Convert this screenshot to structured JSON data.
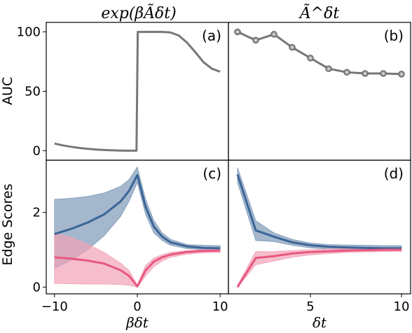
{
  "figure": {
    "col_titles": [
      "exp(βÃδt)",
      "Ã^δt"
    ],
    "ylabel_top": "AUC",
    "ylabel_bottom": "Edge Scores",
    "xlabel_left": "βδt",
    "xlabel_right": "δt",
    "colors": {
      "gray": "#777777",
      "blue": "#3b6596",
      "blue_band": "#7e98b8",
      "pink": "#e8577f",
      "pink_band": "#f2a2b7"
    }
  },
  "chart_data": [
    {
      "panel": "(a)",
      "type": "line",
      "xlim": [
        -11,
        11
      ],
      "ylim": [
        -8,
        108
      ],
      "yticks": [
        0,
        50,
        100
      ],
      "series": [
        {
          "points": [
            [
              -10,
              6
            ],
            [
              -9,
              4.5
            ],
            [
              -8,
              3.3
            ],
            [
              -7,
              2.3
            ],
            [
              -6,
              1.6
            ],
            [
              -5,
              1.0
            ],
            [
              -4,
              0.6
            ],
            [
              -3,
              0.3
            ],
            [
              -2,
              0.1
            ],
            [
              -1,
              0
            ],
            [
              -0.1,
              0
            ],
            [
              0.05,
              100
            ],
            [
              1,
              100
            ],
            [
              2,
              100
            ],
            [
              3,
              100
            ],
            [
              4,
              99.5
            ],
            [
              5,
              97
            ],
            [
              6,
              91
            ],
            [
              7,
              83
            ],
            [
              8,
              74.5
            ],
            [
              9,
              69
            ],
            [
              10,
              66.5
            ]
          ]
        }
      ]
    },
    {
      "panel": "(b)",
      "type": "line",
      "xlim": [
        0.5,
        10.5
      ],
      "ylim": [
        -8,
        108
      ],
      "series": [
        {
          "markers": true,
          "points": [
            [
              1,
              100
            ],
            [
              2,
              93
            ],
            [
              3,
              98
            ],
            [
              4,
              87
            ],
            [
              5,
              78
            ],
            [
              6,
              69
            ],
            [
              7,
              66
            ],
            [
              8,
              65
            ],
            [
              9,
              65
            ],
            [
              10,
              64.5
            ]
          ]
        }
      ]
    },
    {
      "panel": "(c)",
      "type": "area",
      "xlim": [
        -11,
        11
      ],
      "ylim": [
        -0.18,
        3.4
      ],
      "yticks": [
        0,
        2
      ],
      "xticks": [
        -10,
        0,
        10
      ],
      "series": [
        {
          "color": "blue",
          "mean": [
            [
              -10,
              1.42
            ],
            [
              -8,
              1.56
            ],
            [
              -6,
              1.73
            ],
            [
              -4,
              1.95
            ],
            [
              -2,
              2.3
            ],
            [
              -1,
              2.58
            ],
            [
              0,
              3.0
            ],
            [
              1,
              2.15
            ],
            [
              2,
              1.62
            ],
            [
              3,
              1.35
            ],
            [
              4,
              1.2
            ],
            [
              6,
              1.09
            ],
            [
              8,
              1.05
            ],
            [
              10,
              1.04
            ]
          ],
          "upper": [
            [
              -10,
              2.35
            ],
            [
              -8,
              2.38
            ],
            [
              -6,
              2.43
            ],
            [
              -4,
              2.52
            ],
            [
              -2,
              2.7
            ],
            [
              -1,
              2.88
            ],
            [
              0,
              3.22
            ],
            [
              1,
              2.35
            ],
            [
              2,
              1.78
            ],
            [
              3,
              1.45
            ],
            [
              4,
              1.28
            ],
            [
              6,
              1.14
            ],
            [
              8,
              1.12
            ],
            [
              10,
              1.11
            ]
          ],
          "lower": [
            [
              -10,
              0.5
            ],
            [
              -8,
              0.72
            ],
            [
              -6,
              1.0
            ],
            [
              -4,
              1.38
            ],
            [
              -2,
              1.9
            ],
            [
              -1,
              2.3
            ],
            [
              0,
              2.8
            ],
            [
              1,
              1.95
            ],
            [
              2,
              1.45
            ],
            [
              3,
              1.25
            ],
            [
              4,
              1.12
            ],
            [
              6,
              1.03
            ],
            [
              8,
              1.0
            ],
            [
              10,
              0.98
            ]
          ]
        },
        {
          "color": "pink",
          "mean": [
            [
              -10,
              0.8
            ],
            [
              -8,
              0.76
            ],
            [
              -6,
              0.71
            ],
            [
              -4,
              0.63
            ],
            [
              -2,
              0.45
            ],
            [
              -1,
              0.3
            ],
            [
              0,
              0.02
            ],
            [
              1,
              0.45
            ],
            [
              2,
              0.68
            ],
            [
              3,
              0.8
            ],
            [
              4,
              0.87
            ],
            [
              6,
              0.94
            ],
            [
              8,
              0.97
            ],
            [
              10,
              0.98
            ]
          ],
          "upper": [
            [
              -10,
              1.45
            ],
            [
              -8,
              1.33
            ],
            [
              -6,
              1.15
            ],
            [
              -4,
              0.93
            ],
            [
              -2,
              0.64
            ],
            [
              -1,
              0.45
            ],
            [
              0,
              0.05
            ],
            [
              1,
              0.58
            ],
            [
              2,
              0.78
            ],
            [
              3,
              0.87
            ],
            [
              4,
              0.93
            ],
            [
              6,
              0.98
            ],
            [
              8,
              1.0
            ],
            [
              10,
              1.01
            ]
          ],
          "lower": [
            [
              -10,
              0.1
            ],
            [
              -8,
              0.09
            ],
            [
              -6,
              0.08
            ],
            [
              -4,
              0.08
            ],
            [
              -2,
              0.07
            ],
            [
              -1,
              0.05
            ],
            [
              0,
              0.0
            ],
            [
              1,
              0.3
            ],
            [
              2,
              0.55
            ],
            [
              3,
              0.7
            ],
            [
              4,
              0.8
            ],
            [
              6,
              0.88
            ],
            [
              8,
              0.92
            ],
            [
              10,
              0.93
            ]
          ]
        }
      ]
    },
    {
      "panel": "(d)",
      "type": "area",
      "xlim": [
        0.5,
        10.5
      ],
      "ylim": [
        -0.18,
        3.4
      ],
      "xticks": [
        5,
        10
      ],
      "series": [
        {
          "color": "blue",
          "mean": [
            [
              1,
              3.02
            ],
            [
              2,
              1.52
            ],
            [
              3,
              1.35
            ],
            [
              4,
              1.2
            ],
            [
              5,
              1.12
            ],
            [
              6,
              1.08
            ],
            [
              7,
              1.06
            ],
            [
              8,
              1.05
            ],
            [
              9,
              1.04
            ],
            [
              10,
              1.04
            ]
          ],
          "upper": [
            [
              1,
              3.2
            ],
            [
              2,
              1.78
            ],
            [
              3,
              1.45
            ],
            [
              4,
              1.28
            ],
            [
              5,
              1.18
            ],
            [
              6,
              1.14
            ],
            [
              7,
              1.13
            ],
            [
              8,
              1.12
            ],
            [
              9,
              1.11
            ],
            [
              10,
              1.11
            ]
          ],
          "lower": [
            [
              1,
              2.8
            ],
            [
              2,
              1.25
            ],
            [
              3,
              1.22
            ],
            [
              4,
              1.12
            ],
            [
              5,
              1.05
            ],
            [
              6,
              1.02
            ],
            [
              7,
              1.0
            ],
            [
              8,
              0.98
            ],
            [
              9,
              0.98
            ],
            [
              10,
              0.98
            ]
          ]
        },
        {
          "color": "pink",
          "mean": [
            [
              1,
              0.0
            ],
            [
              2,
              0.78
            ],
            [
              3,
              0.83
            ],
            [
              4,
              0.9
            ],
            [
              5,
              0.94
            ],
            [
              6,
              0.96
            ],
            [
              7,
              0.98
            ],
            [
              8,
              0.99
            ],
            [
              9,
              1.0
            ],
            [
              10,
              1.0
            ]
          ],
          "upper": [
            [
              1,
              0.05
            ],
            [
              2,
              0.95
            ],
            [
              3,
              0.95
            ],
            [
              4,
              0.98
            ],
            [
              5,
              1.0
            ],
            [
              6,
              1.02
            ],
            [
              7,
              1.03
            ],
            [
              8,
              1.03
            ],
            [
              9,
              1.04
            ],
            [
              10,
              1.04
            ]
          ],
          "lower": [
            [
              1,
              0.0
            ],
            [
              2,
              0.6
            ],
            [
              3,
              0.7
            ],
            [
              4,
              0.8
            ],
            [
              5,
              0.86
            ],
            [
              6,
              0.9
            ],
            [
              7,
              0.93
            ],
            [
              8,
              0.94
            ],
            [
              9,
              0.95
            ],
            [
              10,
              0.96
            ]
          ]
        }
      ]
    }
  ]
}
